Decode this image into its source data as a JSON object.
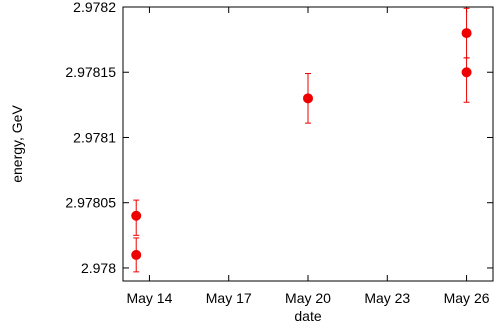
{
  "chart_data": {
    "type": "scatter",
    "xlabel": "date",
    "ylabel": "energy, GeV",
    "x_ticks": [
      "May 14",
      "May 17",
      "May 20",
      "May 23",
      "May 26"
    ],
    "x_tick_dates": [
      "May 14",
      "May 17",
      "May 20",
      "May 23",
      "May 26"
    ],
    "y_ticks": [
      "2.978",
      "2.97805",
      "2.9781",
      "2.97815",
      "2.9782"
    ],
    "xlim": [
      "May 13",
      "May 27"
    ],
    "ylim": [
      2.97799,
      2.9782
    ],
    "grid": false,
    "color": "#ee0000",
    "points": [
      {
        "x": "May 13.5",
        "y": 2.97804,
        "err_low": 1.5e-05,
        "err_high": 1.2e-05
      },
      {
        "x": "May 13.5",
        "y": 2.97801,
        "err_low": 1.3e-05,
        "err_high": 1.3e-05
      },
      {
        "x": "May 20",
        "y": 2.97813,
        "err_low": 1.9e-05,
        "err_high": 1.9e-05
      },
      {
        "x": "May 26",
        "y": 2.97818,
        "err_low": 1.9e-05,
        "err_high": 1.9e-05
      },
      {
        "x": "May 26",
        "y": 2.97815,
        "err_low": 2.3e-05,
        "err_high": 1.1e-05
      }
    ]
  }
}
